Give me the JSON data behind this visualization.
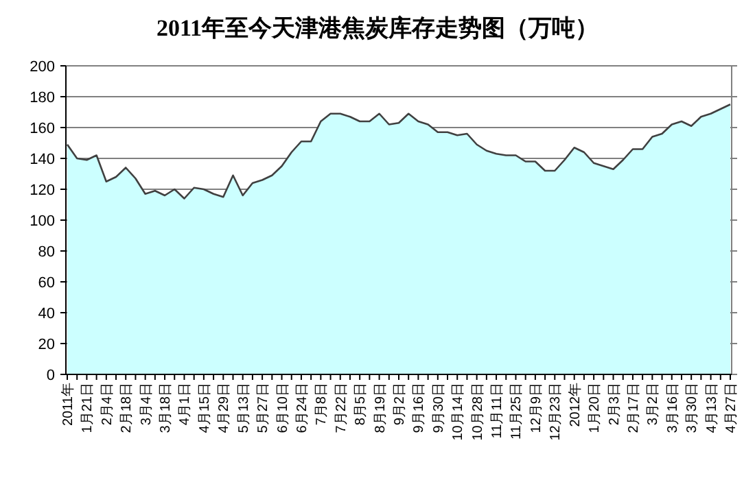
{
  "chart_data": {
    "type": "area",
    "title": "2011年至今天津港焦炭库存走势图（万吨）",
    "categories": [
      "2011年",
      null,
      "1月21日",
      null,
      "2月4日",
      null,
      "2月18日",
      null,
      "3月4日",
      null,
      "3月18日",
      null,
      "4月1日",
      null,
      "4月15日",
      null,
      "4月29日",
      null,
      "5月13日",
      null,
      "5月27日",
      null,
      "6月10日",
      null,
      "6月24日",
      null,
      "7月8日",
      null,
      "7月22日",
      null,
      "8月5日",
      null,
      "8月19日",
      null,
      "9月2日",
      null,
      "9月16日",
      null,
      "9月30日",
      null,
      "10月14日",
      null,
      "10月28日",
      null,
      "11月11日",
      null,
      "11月25日",
      null,
      "12月9日",
      null,
      "12月23日",
      null,
      "2012年",
      null,
      "1月20日",
      null,
      "2月3日",
      null,
      "2月17日",
      null,
      "3月2日",
      null,
      "3月16日",
      null,
      "3月30日",
      null,
      "4月13日",
      null,
      "4月27日"
    ],
    "series": [
      {
        "color": "#ccffff",
        "values": [
          149,
          140,
          139,
          142,
          125,
          128,
          134,
          127,
          117,
          119,
          116,
          120,
          114,
          121,
          120,
          117,
          115,
          129,
          116,
          124,
          126,
          129,
          135,
          144,
          151,
          151,
          164,
          169,
          169,
          167,
          164,
          164,
          169,
          162,
          163,
          169,
          164,
          162,
          157,
          157,
          155,
          156,
          149,
          145,
          143,
          142,
          142,
          138,
          138,
          132,
          132,
          139,
          147,
          144,
          137,
          135,
          133,
          139,
          146,
          146,
          154,
          156,
          162,
          164,
          161,
          167,
          169,
          172,
          175
        ]
      }
    ],
    "ylim": [
      0,
      200
    ],
    "yticks": [
      0,
      20,
      40,
      60,
      80,
      100,
      120,
      140,
      160,
      180,
      200
    ],
    "grid": "y"
  }
}
